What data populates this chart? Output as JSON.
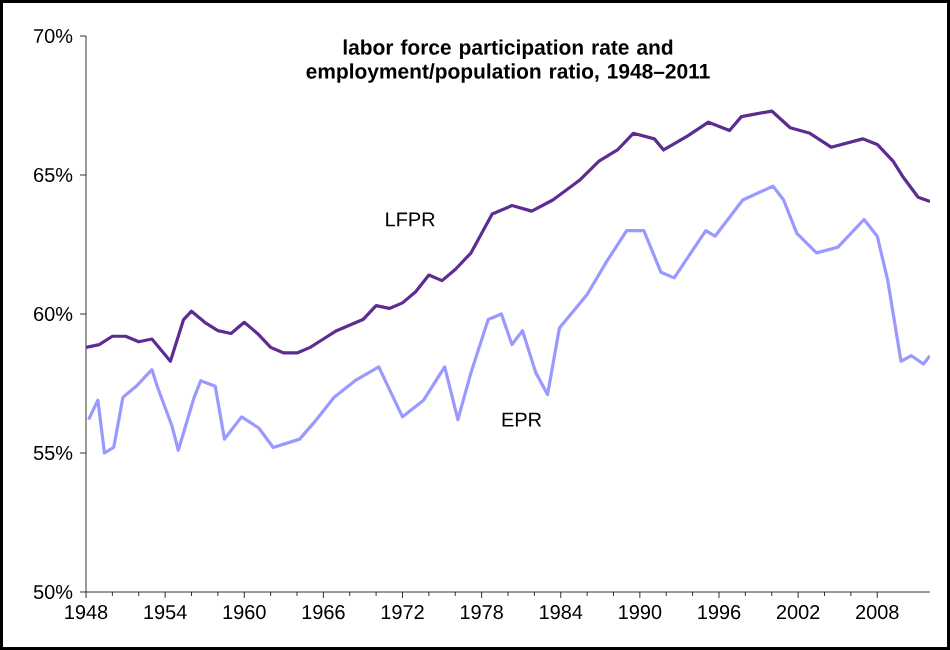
{
  "chart_data": {
    "type": "line",
    "title": "labor force participation rate and employment/population ratio, 1948–2011",
    "xlim": [
      1948,
      2012
    ],
    "xticks": [
      1948,
      1954,
      1960,
      1966,
      1972,
      1978,
      1984,
      1990,
      1996,
      2002,
      2008
    ],
    "ylim": [
      50,
      70
    ],
    "yticks": [
      {
        "value": 50,
        "label": "50%"
      },
      {
        "value": 55,
        "label": "55%"
      },
      {
        "value": 60,
        "label": "60%"
      },
      {
        "value": 65,
        "label": "65%"
      },
      {
        "value": 70,
        "label": "70%"
      }
    ],
    "grid": false,
    "marker": "none",
    "line_style": "solid",
    "series": [
      {
        "name": "LFPR",
        "color": "#5c2d91",
        "x": [
          1948,
          1949,
          1950,
          1951,
          1952,
          1953,
          1954.4,
          1955.4,
          1956,
          1957,
          1958,
          1959,
          1960,
          1961,
          1962,
          1963,
          1964,
          1965,
          1966,
          1967,
          1968,
          1969,
          1970,
          1971,
          1972,
          1973,
          1974,
          1975,
          1976,
          1977.2,
          1978.8,
          1980.3,
          1981.8,
          1983.4,
          1985.4,
          1986.9,
          1988.3,
          1989.5,
          1991.1,
          1991.8,
          1993.6,
          1995.2,
          1996.8,
          1997.7,
          2000,
          2001.4,
          2002.9,
          2004.5,
          2006.9,
          2008,
          2009.2,
          2010,
          2011.1,
          2012
        ],
        "values": [
          58.8,
          58.9,
          59.2,
          59.2,
          59.0,
          59.1,
          58.3,
          59.8,
          60.1,
          59.7,
          59.4,
          59.3,
          59.7,
          59.3,
          58.8,
          58.6,
          58.6,
          58.8,
          59.1,
          59.4,
          59.6,
          59.8,
          60.3,
          60.2,
          60.4,
          60.8,
          61.4,
          61.2,
          61.6,
          62.2,
          63.6,
          63.9,
          63.7,
          64.1,
          64.8,
          65.5,
          65.9,
          66.5,
          66.3,
          65.9,
          66.4,
          66.9,
          66.6,
          67.1,
          67.3,
          66.7,
          66.5,
          66.0,
          66.3,
          66.1,
          65.5,
          64.9,
          64.2,
          64.05
        ]
      },
      {
        "name": "EPR",
        "color": "#9999ff",
        "x": [
          1948.2,
          1948.9,
          1949.4,
          1950.1,
          1950.8,
          1951.8,
          1953,
          1953.4,
          1954.5,
          1955,
          1956.2,
          1956.7,
          1957.8,
          1958.5,
          1959.8,
          1961.1,
          1962.2,
          1964.2,
          1965.3,
          1966.8,
          1968.4,
          1970.2,
          1972,
          1973.6,
          1975.2,
          1976.2,
          1977.2,
          1978.5,
          1979.5,
          1980.3,
          1981.1,
          1982.1,
          1983,
          1983.9,
          1986,
          1987.5,
          1989,
          1990.3,
          1991.6,
          1992.6,
          1995,
          1995.7,
          1997.8,
          2000.1,
          2000.9,
          2001.9,
          2003.4,
          2005,
          2007,
          2008,
          2008.8,
          2009.8,
          2010.6,
          2011.5,
          2012
        ],
        "values": [
          56.2,
          56.9,
          55.0,
          55.2,
          57.0,
          57.4,
          58.0,
          57.4,
          56.0,
          55.1,
          57.0,
          57.6,
          57.4,
          55.5,
          56.3,
          55.9,
          55.2,
          55.5,
          56.1,
          57.0,
          57.6,
          58.1,
          56.3,
          56.9,
          58.1,
          56.2,
          57.9,
          59.8,
          60.0,
          58.9,
          59.4,
          57.9,
          57.1,
          59.5,
          60.7,
          61.9,
          63.0,
          63.0,
          61.5,
          61.3,
          63.0,
          62.8,
          64.1,
          64.6,
          64.1,
          62.9,
          62.2,
          62.4,
          63.4,
          62.8,
          61.2,
          58.3,
          58.5,
          58.2,
          58.5
        ]
      }
    ]
  }
}
